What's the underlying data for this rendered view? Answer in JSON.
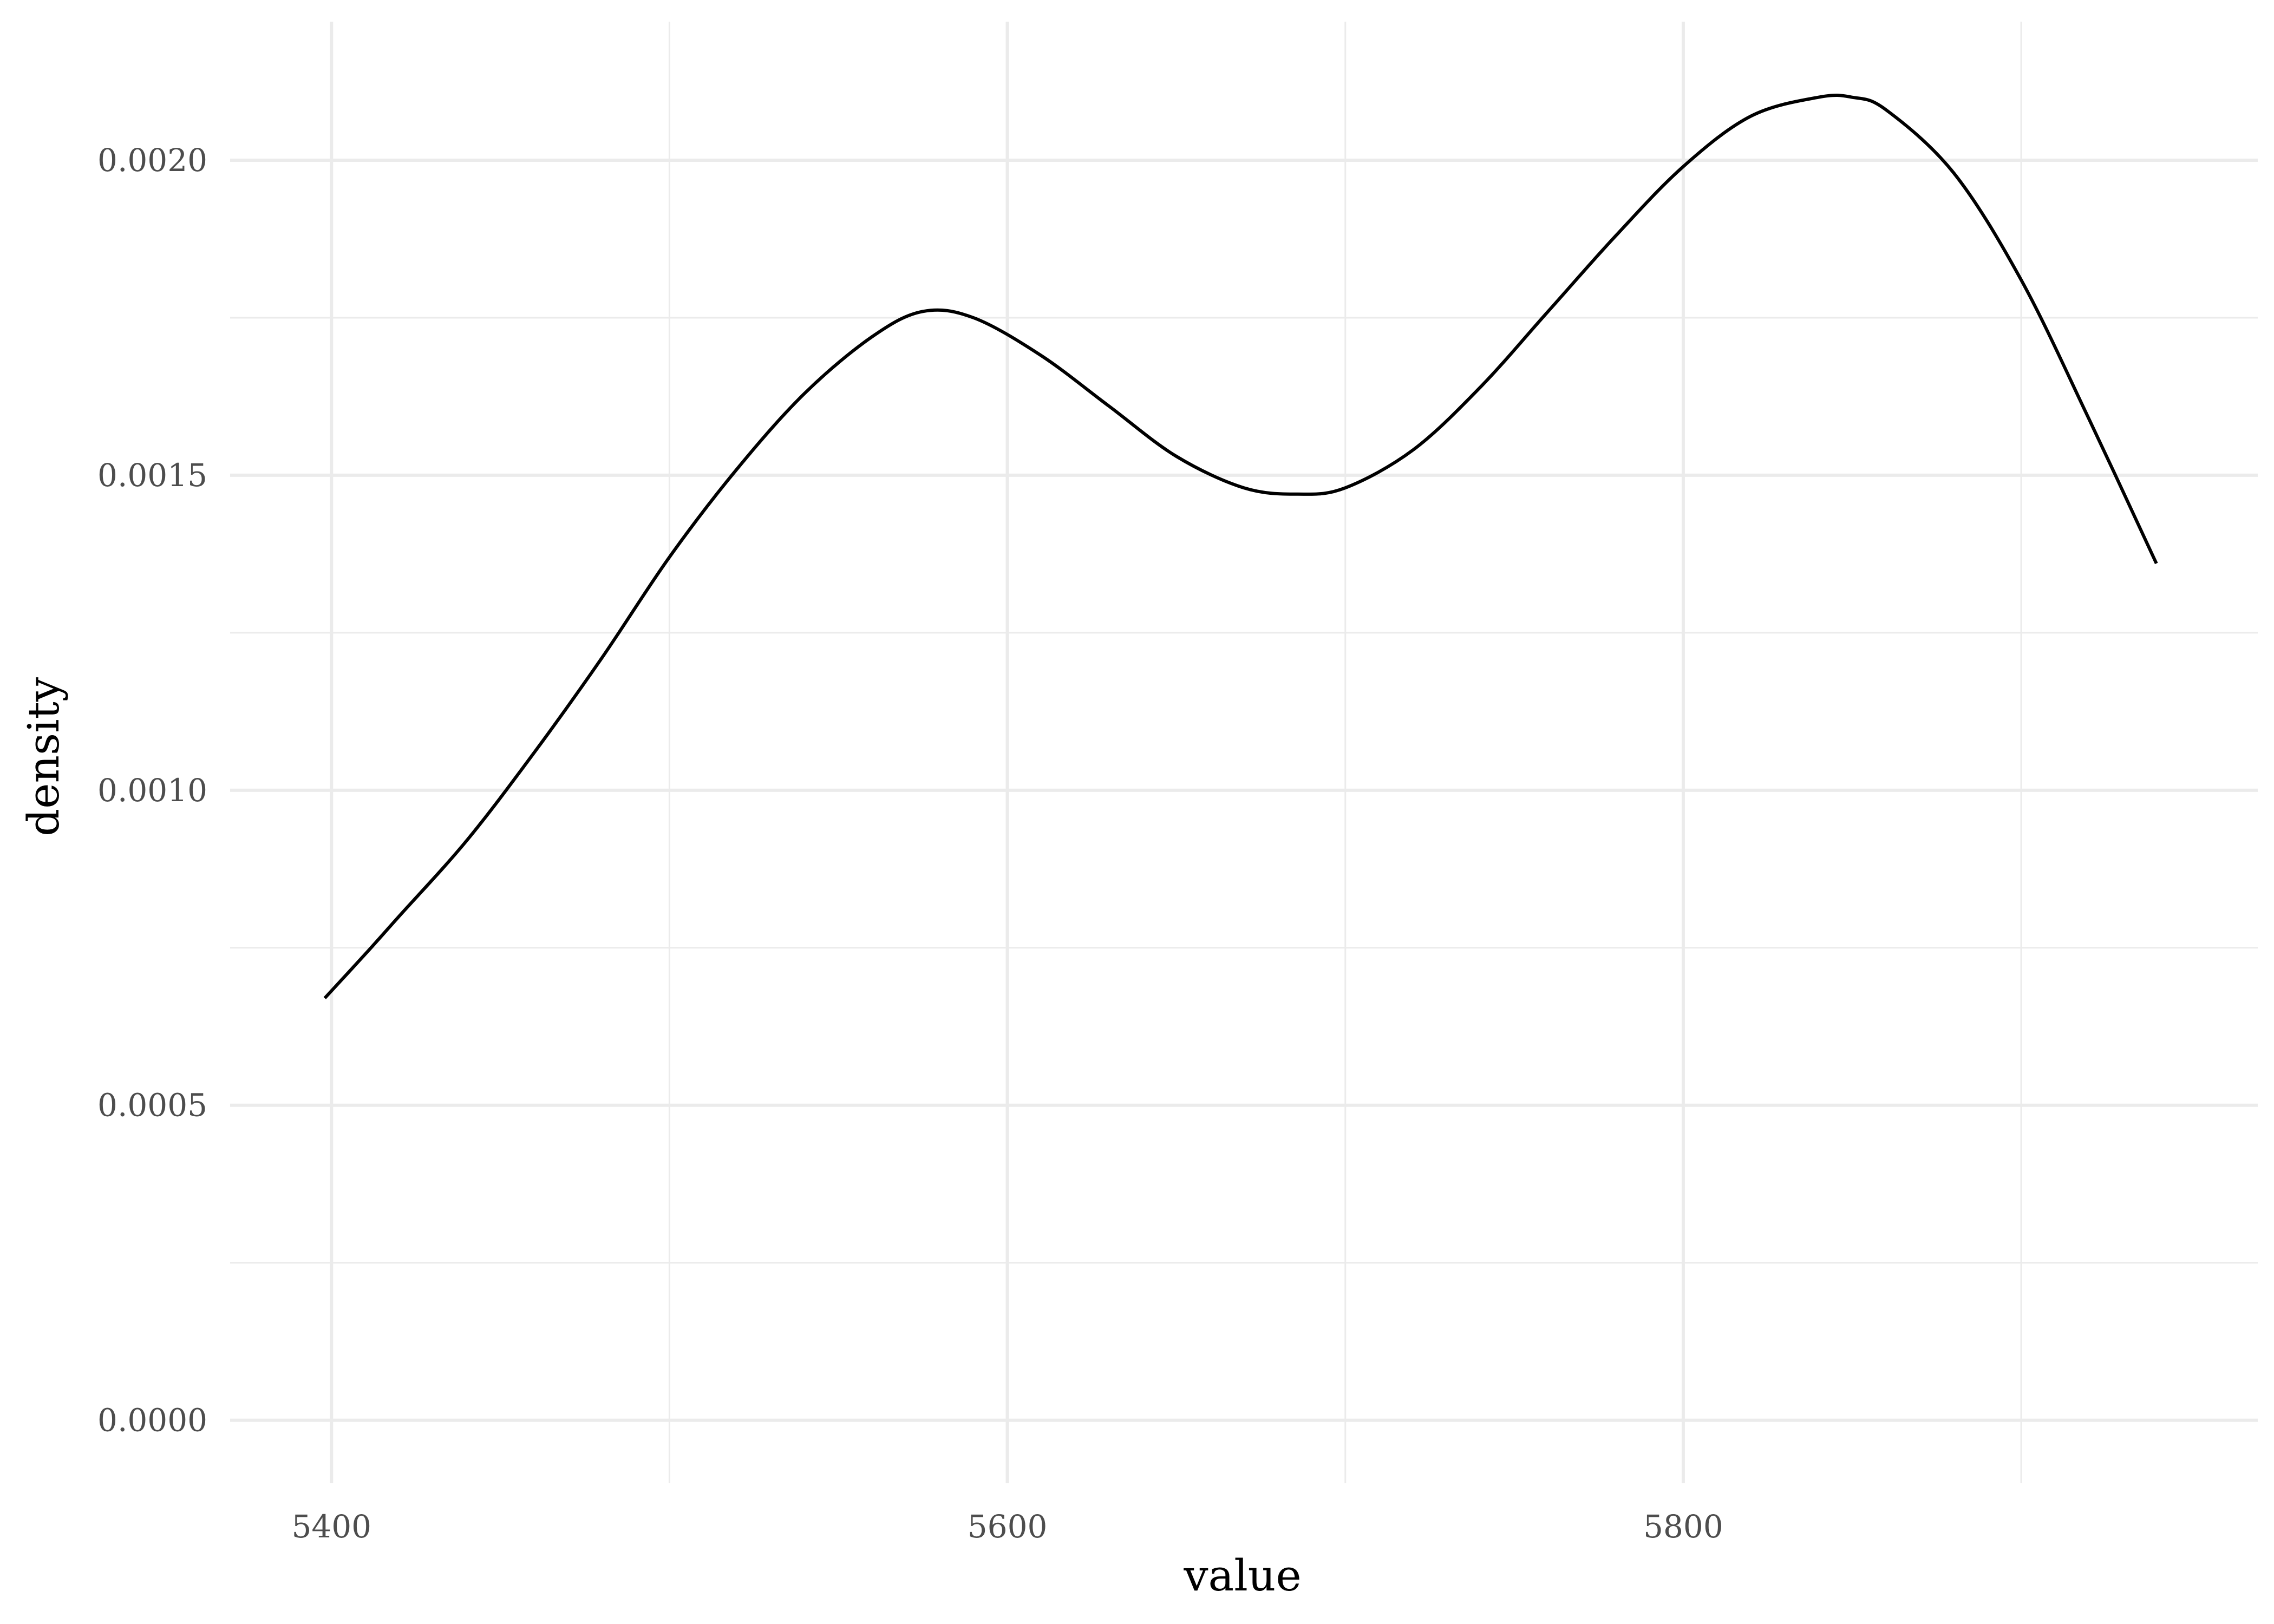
{
  "chart_data": {
    "type": "line",
    "title": "",
    "xlabel": "value",
    "ylabel": "density",
    "xlim": [
      5370,
      5970
    ],
    "ylim": [
      -0.0001,
      0.00222
    ],
    "x_ticks": [
      5400,
      5600,
      5800
    ],
    "x_tick_labels": [
      "5400",
      "5600",
      "5800"
    ],
    "x_minor_ticks": [
      5500,
      5700,
      5900
    ],
    "y_ticks": [
      0.0,
      0.0005,
      0.001,
      0.0015,
      0.002
    ],
    "y_tick_labels": [
      "0.0000",
      "0.0005",
      "0.0010",
      "0.0015",
      "0.0020"
    ],
    "y_minor_ticks": [
      0.00025,
      0.00075,
      0.00125,
      0.00175
    ],
    "grid": true,
    "legend": "none",
    "line_color": "#000000",
    "grid_color": "#ebebeb",
    "series": [
      {
        "x": [
          5398,
          5410,
          5420,
          5440,
          5460,
          5480,
          5500,
          5520,
          5540,
          5560,
          5575,
          5590,
          5610,
          5630,
          5650,
          5670,
          5686,
          5700,
          5720,
          5740,
          5760,
          5780,
          5800,
          5820,
          5840,
          5850,
          5860,
          5880,
          5900,
          5920,
          5940
        ],
        "y": [
          0.00067,
          0.00074,
          0.0008,
          0.00092,
          0.00106,
          0.00121,
          0.00137,
          0.00151,
          0.00163,
          0.00172,
          0.00176,
          0.00175,
          0.00169,
          0.00161,
          0.00153,
          0.00148,
          0.00147,
          0.00148,
          0.00154,
          0.00164,
          0.00176,
          0.00188,
          0.00199,
          0.00207,
          0.0021,
          0.0021,
          0.00208,
          0.00198,
          0.00181,
          0.00159,
          0.00136
        ]
      }
    ]
  }
}
